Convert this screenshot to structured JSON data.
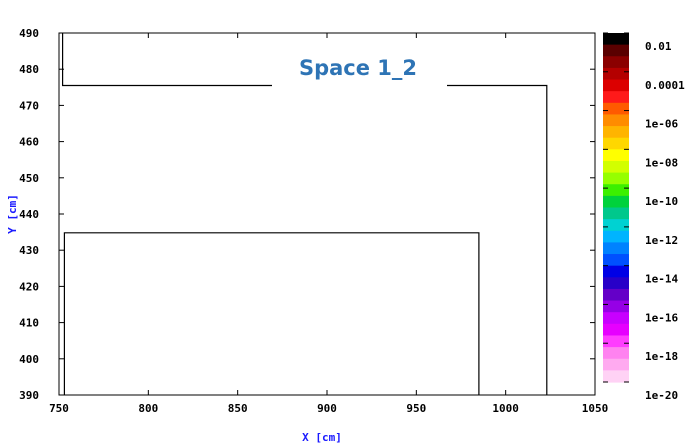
{
  "chart_data": {
    "type": "heatmap",
    "title": "Space 1_2",
    "xlabel": "X [cm]",
    "ylabel": "Y [cm]",
    "xlim": [
      750,
      1050
    ],
    "ylim": [
      390,
      490
    ],
    "x_ticks": [
      "750",
      "800",
      "850",
      "900",
      "950",
      "1000",
      "1050"
    ],
    "y_ticks": [
      "390",
      "400",
      "410",
      "420",
      "430",
      "440",
      "450",
      "460",
      "470",
      "480",
      "490"
    ],
    "geometry_outlines": [
      {
        "name": "upper-region-outline",
        "points": [
          [
            752,
            491
          ],
          [
            752,
            475.5
          ],
          [
            1023,
            475.5
          ],
          [
            1023,
            390
          ]
        ]
      },
      {
        "name": "lower-region-outline",
        "points": [
          [
            753,
            390
          ],
          [
            753,
            434.8
          ],
          [
            985,
            434.8
          ],
          [
            985,
            390
          ]
        ]
      }
    ],
    "colorbar": {
      "scale": "log",
      "range": [
        1e-20,
        0.01
      ],
      "tick_labels": [
        "0.01",
        "0.0001",
        "1e-06",
        "1e-08",
        "1e-10",
        "1e-12",
        "1e-14",
        "1e-16",
        "1e-18",
        "1e-20"
      ],
      "colors": [
        "#000000",
        "#5a0000",
        "#8b0000",
        "#b40000",
        "#dc0000",
        "#ff1a1a",
        "#ff5a00",
        "#ff8c00",
        "#ffb400",
        "#ffd700",
        "#ffff00",
        "#d2ff00",
        "#96ff00",
        "#3cf000",
        "#00d23c",
        "#00c88c",
        "#00d2d2",
        "#00b4ff",
        "#0082ff",
        "#0050ff",
        "#0000e6",
        "#2800c8",
        "#6400c8",
        "#9600e6",
        "#c800ff",
        "#e600ff",
        "#ff3cff",
        "#ff82f0",
        "#ffaaf0",
        "#ffd2f5"
      ]
    }
  }
}
